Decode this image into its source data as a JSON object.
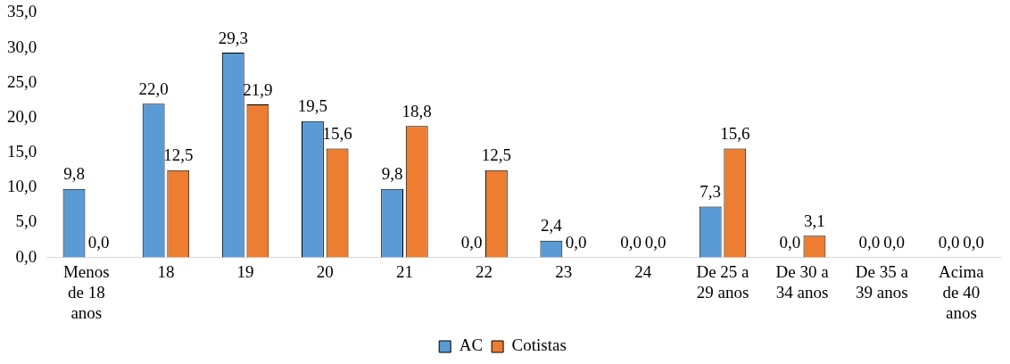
{
  "chart_data": {
    "type": "bar",
    "categories": [
      "Menos de 18 anos",
      "18",
      "19",
      "20",
      "21",
      "22",
      "23",
      "24",
      "De 25 a 29 anos",
      "De 30 a 34 anos",
      "De 35 a 39 anos",
      "Acima de 40 anos"
    ],
    "series": [
      {
        "name": "AC",
        "color": "#5b9bd5",
        "values": [
          9.8,
          22.0,
          29.3,
          19.5,
          9.8,
          0.0,
          2.4,
          0.0,
          7.3,
          0.0,
          0.0,
          0.0
        ],
        "value_labels": [
          "9,8",
          "22,0",
          "29,3",
          "19,5",
          "9,8",
          "0,0",
          "2,4",
          "0,0",
          "7,3",
          "0,0",
          "0,0",
          "0,0"
        ]
      },
      {
        "name": "Cotistas",
        "color": "#ed7d31",
        "values": [
          0.0,
          12.5,
          21.9,
          15.6,
          18.8,
          12.5,
          0.0,
          0.0,
          15.6,
          3.1,
          0.0,
          0.0
        ],
        "value_labels": [
          "0,0",
          "12,5",
          "21,9",
          "15,6",
          "18,8",
          "12,5",
          "0,0",
          "0,0",
          "15,6",
          "3,1",
          "0,0",
          "0,0"
        ]
      }
    ],
    "ylim": [
      0,
      35
    ],
    "yticks": [
      {
        "value": 0,
        "label": "0,0"
      },
      {
        "value": 5,
        "label": "5,0"
      },
      {
        "value": 10,
        "label": "10,0"
      },
      {
        "value": 15,
        "label": "15,0"
      },
      {
        "value": 20,
        "label": "20,0"
      },
      {
        "value": 25,
        "label": "25,0"
      },
      {
        "value": 30,
        "label": "30,0"
      },
      {
        "value": 35,
        "label": "35,0"
      }
    ],
    "grid": false,
    "legend": "bottom"
  }
}
